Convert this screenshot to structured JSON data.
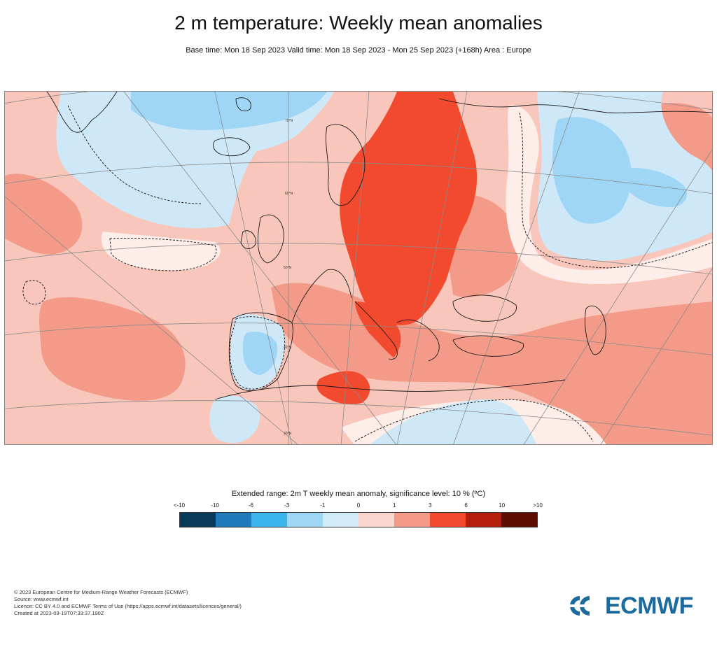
{
  "title": "2 m temperature: Weekly mean anomalies",
  "subtitle": "Base time: Mon 18 Sep 2023 Valid time: Mon 18 Sep 2023 - Mon 25 Sep 2023 (+168h) Area : Europe",
  "map": {
    "region": "Europe",
    "lat_labels": [
      "70°N",
      "60°N",
      "50°N",
      "40°N",
      "30°N"
    ]
  },
  "legend": {
    "title": "Extended range: 2m T weekly mean anomaly, significance level: 10 % (ºC)",
    "ticks": [
      "<-10",
      "-10",
      "-6",
      "-3",
      "-1",
      "0",
      "1",
      "3",
      "6",
      "10",
      ">10"
    ],
    "colors": [
      "#0a3a5a",
      "#1e7ab8",
      "#3cb4ee",
      "#9fd6f6",
      "#d2ecfa",
      "#fbd6cf",
      "#f59a88",
      "#f24a2e",
      "#b41e0e",
      "#5e0b04"
    ]
  },
  "footer": {
    "line1": "© 2023 European Centre for Medium-Range Weather Forecasts (ECMWF)",
    "line2": "Source: www.ecmwf.int",
    "line3": "Licence: CC BY 4.0 and ECMWF Terms of Use (https://apps.ecmwf.int/datasets/licences/general/)",
    "line4": "Created at 2023-09-19T07:33:37.190Z"
  },
  "logo": {
    "text": "ECMWF",
    "color": "#1c6a9e"
  }
}
